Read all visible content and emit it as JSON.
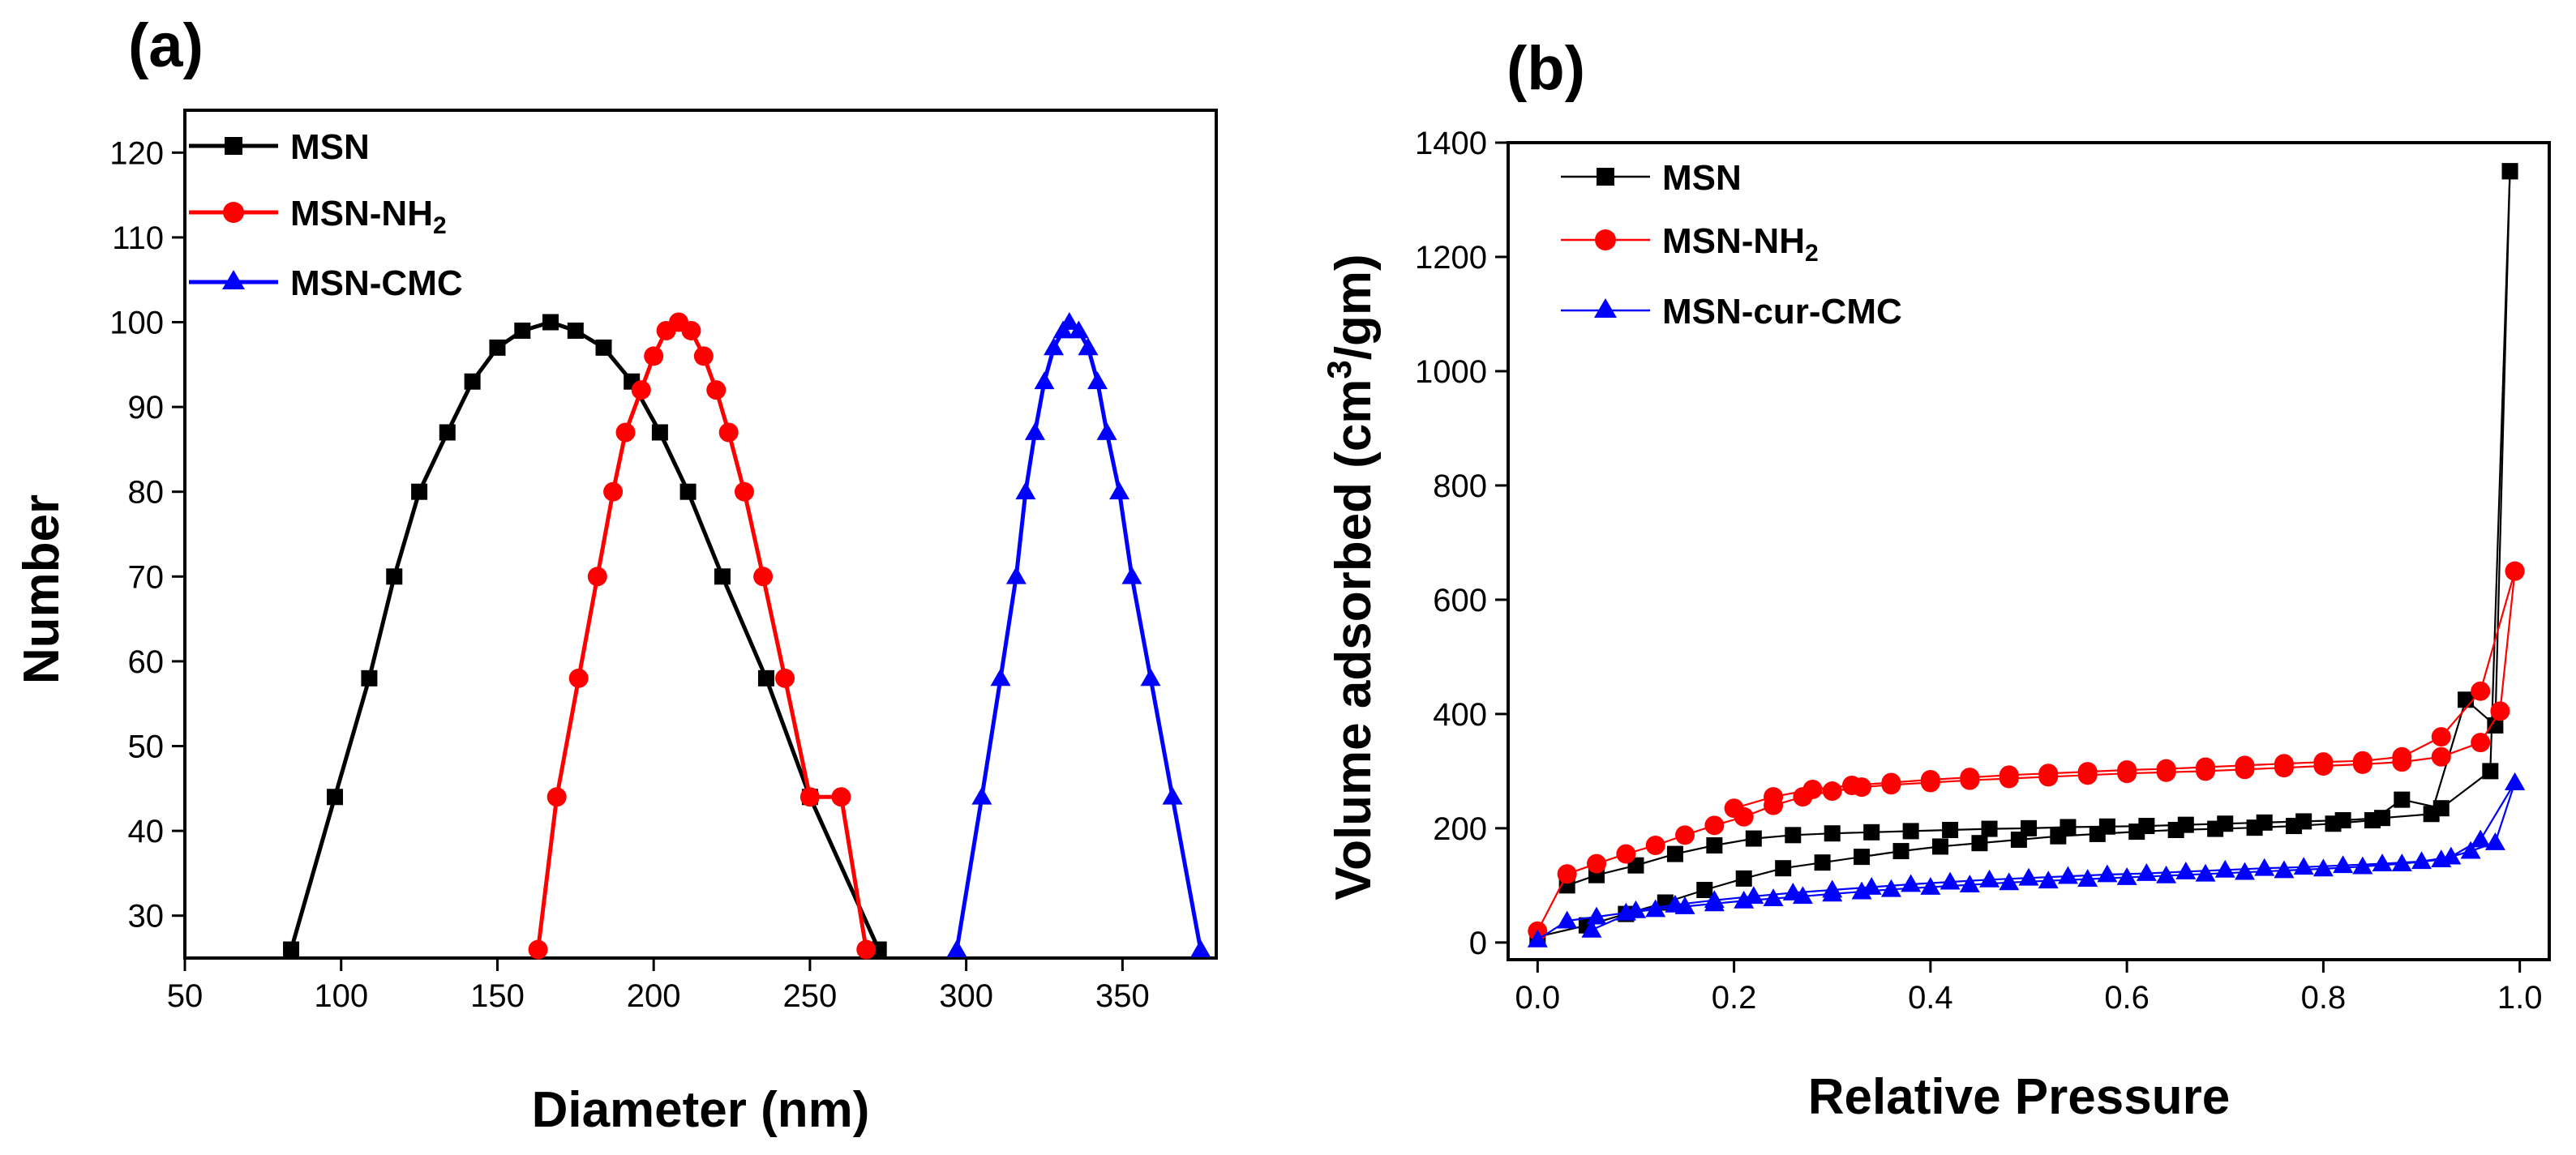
{
  "chart_data": [
    {
      "panel_label": "(a)",
      "type": "line",
      "xlabel": "Diameter (nm)",
      "ylabel": "Number",
      "xlim": [
        50,
        380
      ],
      "ylim": [
        25,
        125
      ],
      "xticks": [
        50,
        100,
        150,
        200,
        250,
        300,
        350
      ],
      "yticks": [
        30,
        40,
        50,
        60,
        70,
        80,
        90,
        100,
        110,
        120
      ],
      "legend_position": "top-left",
      "series": [
        {
          "name": "MSN",
          "name_base": "MSN",
          "name_sub": "",
          "color": "#000000",
          "marker": "square",
          "x": [
            84,
            98,
            109,
            117,
            125,
            134,
            142,
            150,
            158,
            167,
            175,
            184,
            193,
            202,
            211,
            222,
            236,
            250,
            272
          ],
          "y": [
            26,
            44,
            58,
            70,
            80,
            87,
            93,
            97,
            99,
            100,
            99,
            97,
            93,
            87,
            80,
            70,
            58,
            44,
            26
          ]
        },
        {
          "name": "MSN-NH2",
          "name_base": "MSN-NH",
          "name_sub": "2",
          "color": "#ff0000",
          "marker": "circle",
          "x": [
            163,
            169,
            176,
            182,
            187,
            191,
            196,
            200,
            204,
            208,
            212,
            216,
            220,
            224,
            229,
            235,
            242,
            250,
            260,
            268
          ],
          "y": [
            26,
            44,
            58,
            70,
            80,
            87,
            92,
            96,
            99,
            100,
            99,
            96,
            92,
            87,
            80,
            70,
            58,
            44,
            44,
            26
          ]
        },
        {
          "name": "MSN-CMC",
          "name_base": "MSN-CMC",
          "name_sub": "",
          "color": "#0000ff",
          "marker": "triangle",
          "x": [
            297,
            305,
            311,
            316,
            319,
            322,
            325,
            328,
            331,
            333,
            336,
            339,
            342,
            345,
            349,
            353,
            359,
            366,
            375
          ],
          "y": [
            26,
            44,
            58,
            70,
            80,
            87,
            93,
            97,
            99,
            100,
            99,
            97,
            93,
            87,
            80,
            70,
            58,
            44,
            26
          ]
        }
      ]
    },
    {
      "panel_label": "(b)",
      "type": "line",
      "xlabel": "Relative Pressure",
      "ylabel_prefix": "Volume adsorbed (cm",
      "ylabel_sup": "3",
      "ylabel_suffix": "/gm)",
      "xlim": [
        -0.03,
        1.03
      ],
      "ylim": [
        -30,
        1400
      ],
      "xticks": [
        0.0,
        0.2,
        0.4,
        0.6,
        0.8,
        1.0
      ],
      "xtick_labels": [
        "0.0",
        "0.2",
        "0.4",
        "0.6",
        "0.8",
        "1.0"
      ],
      "yticks": [
        0,
        200,
        400,
        600,
        800,
        1000,
        1200,
        1400
      ],
      "legend_position": "top-left",
      "series": [
        {
          "name": "MSN",
          "name_base": "MSN",
          "name_sub": "",
          "color": "#000000",
          "marker": "square",
          "adsorption_x": [
            0.0,
            0.05,
            0.09,
            0.13,
            0.17,
            0.21,
            0.25,
            0.29,
            0.33,
            0.37,
            0.41,
            0.45,
            0.49,
            0.53,
            0.57,
            0.61,
            0.65,
            0.69,
            0.73,
            0.77,
            0.81,
            0.85,
            0.88,
            0.92,
            0.97,
            0.99
          ],
          "adsorption_y": [
            10,
            30,
            50,
            70,
            92,
            112,
            130,
            140,
            150,
            160,
            168,
            174,
            180,
            186,
            190,
            194,
            197,
            199,
            201,
            204,
            208,
            214,
            250,
            235,
            300,
            1350
          ],
          "desorption_x": [
            0.99,
            0.975,
            0.945,
            0.91,
            0.86,
            0.82,
            0.78,
            0.74,
            0.7,
            0.66,
            0.62,
            0.58,
            0.54,
            0.5,
            0.46,
            0.42,
            0.38,
            0.34,
            0.3,
            0.26,
            0.22,
            0.18,
            0.14,
            0.1,
            0.06,
            0.03
          ],
          "desorption_y": [
            1350,
            380,
            425,
            225,
            218,
            214,
            212,
            210,
            208,
            206,
            204,
            203,
            202,
            200,
            199,
            197,
            195,
            193,
            191,
            188,
            182,
            170,
            155,
            135,
            118,
            100
          ]
        },
        {
          "name": "MSN-NH2",
          "name_base": "MSN-NH",
          "name_sub": "2",
          "color": "#ff0000",
          "marker": "circle",
          "adsorption_x": [
            0.0,
            0.03,
            0.06,
            0.09,
            0.12,
            0.15,
            0.18,
            0.21,
            0.24,
            0.27,
            0.3,
            0.33,
            0.36,
            0.4,
            0.44,
            0.48,
            0.52,
            0.56,
            0.6,
            0.64,
            0.68,
            0.72,
            0.76,
            0.8,
            0.84,
            0.88,
            0.92,
            0.96,
            0.98,
            0.995
          ],
          "adsorption_y": [
            20,
            120,
            138,
            155,
            170,
            188,
            205,
            220,
            240,
            255,
            265,
            272,
            276,
            280,
            284,
            287,
            290,
            293,
            296,
            298,
            300,
            303,
            306,
            309,
            312,
            316,
            325,
            350,
            405,
            650
          ],
          "desorption_x": [
            0.995,
            0.96,
            0.92,
            0.88,
            0.84,
            0.8,
            0.76,
            0.72,
            0.68,
            0.64,
            0.6,
            0.56,
            0.52,
            0.48,
            0.44,
            0.4,
            0.36,
            0.32,
            0.28,
            0.24,
            0.2
          ],
          "desorption_y": [
            650,
            440,
            360,
            325,
            318,
            316,
            313,
            310,
            307,
            304,
            302,
            299,
            296,
            293,
            289,
            285,
            280,
            275,
            268,
            255,
            235
          ]
        },
        {
          "name": "MSN-cur-CMC",
          "name_base": "MSN-cur-CMC",
          "name_sub": "",
          "color": "#0000ff",
          "marker": "triangle",
          "adsorption_x": [
            0.0,
            0.03,
            0.06,
            0.09,
            0.12,
            0.15,
            0.18,
            0.21,
            0.24,
            0.27,
            0.3,
            0.33,
            0.36,
            0.4,
            0.44,
            0.48,
            0.52,
            0.56,
            0.6,
            0.64,
            0.68,
            0.72,
            0.76,
            0.8,
            0.84,
            0.88,
            0.92,
            0.95,
            0.975,
            0.995
          ],
          "adsorption_y": [
            5,
            38,
            45,
            52,
            58,
            63,
            68,
            73,
            77,
            81,
            85,
            89,
            93,
            97,
            101,
            105,
            108,
            111,
            114,
            117,
            120,
            123,
            126,
            129,
            133,
            138,
            145,
            160,
            175,
            280
          ],
          "desorption_x": [
            0.995,
            0.96,
            0.93,
            0.9,
            0.86,
            0.82,
            0.78,
            0.74,
            0.7,
            0.66,
            0.62,
            0.58,
            0.54,
            0.5,
            0.46,
            0.42,
            0.38,
            0.34,
            0.3,
            0.26,
            0.22,
            0.18,
            0.14,
            0.1,
            0.055
          ],
          "desorption_y": [
            280,
            180,
            150,
            142,
            138,
            135,
            132,
            130,
            127,
            124,
            121,
            119,
            116,
            113,
            110,
            106,
            102,
            97,
            92,
            87,
            81,
            74,
            66,
            56,
            22
          ]
        }
      ]
    }
  ]
}
